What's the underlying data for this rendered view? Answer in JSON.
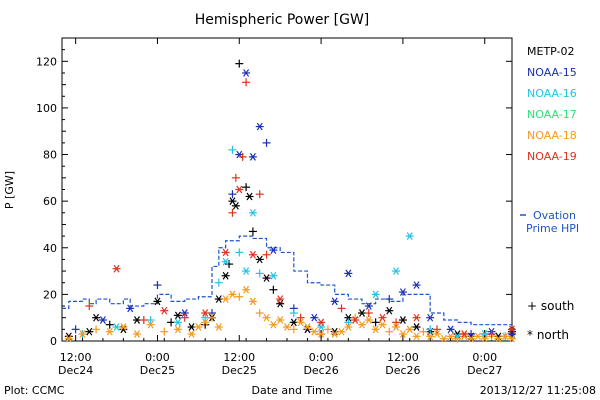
{
  "chart_data": {
    "type": "scatter",
    "title": "Hemispheric Power [GW]",
    "ylabel": "P [GW]",
    "xlabel": "Date and Time",
    "footer_left": "Plot: CCMC",
    "footer_right": "2013/12/27 11:25:08",
    "ylim": [
      0,
      130
    ],
    "yticks": [
      0,
      20,
      40,
      60,
      80,
      100,
      120
    ],
    "xlim_hours": [
      -14,
      52
    ],
    "xticks": [
      {
        "h": -12,
        "time": "12:00",
        "date": "Dec24"
      },
      {
        "h": 0,
        "time": "0:00",
        "date": "Dec25"
      },
      {
        "h": 12,
        "time": "12:00",
        "date": "Dec25"
      },
      {
        "h": 24,
        "time": "0:00",
        "date": "Dec26"
      },
      {
        "h": 36,
        "time": "12:00",
        "date": "Dec26"
      },
      {
        "h": 48,
        "time": "0:00",
        "date": "Dec27"
      }
    ],
    "legend": [
      {
        "name": "METP-02",
        "color": "#000000"
      },
      {
        "name": "NOAA-15",
        "color": "#1a2fb8"
      },
      {
        "name": "NOAA-16",
        "color": "#22c3e6"
      },
      {
        "name": "NOAA-17",
        "color": "#2ee07a"
      },
      {
        "name": "NOAA-18",
        "color": "#f59a1c"
      },
      {
        "name": "NOAA-19",
        "color": "#e0321e"
      }
    ],
    "ovation_label": [
      "Ovation",
      "Prime HPI"
    ],
    "ovation_color": "#1a56c8",
    "marker_legend": [
      {
        "symbol": "+",
        "label": "south"
      },
      {
        "symbol": "*",
        "label": "north"
      }
    ],
    "ovation_series": [
      [
        -14,
        14
      ],
      [
        -13,
        17
      ],
      [
        -11,
        18
      ],
      [
        -10,
        16
      ],
      [
        -9,
        18
      ],
      [
        -7,
        16
      ],
      [
        -5,
        18
      ],
      [
        -4,
        15
      ],
      [
        -2,
        16
      ],
      [
        0,
        20
      ],
      [
        2,
        17
      ],
      [
        4,
        18
      ],
      [
        6,
        19
      ],
      [
        8,
        32
      ],
      [
        9,
        40
      ],
      [
        10,
        43
      ],
      [
        12,
        45
      ],
      [
        14,
        44
      ],
      [
        16,
        40
      ],
      [
        18,
        38
      ],
      [
        20,
        30
      ],
      [
        22,
        25
      ],
      [
        24,
        24
      ],
      [
        26,
        20
      ],
      [
        28,
        18
      ],
      [
        30,
        16
      ],
      [
        32,
        18
      ],
      [
        34,
        17
      ],
      [
        36,
        20
      ],
      [
        38,
        20
      ],
      [
        40,
        12
      ],
      [
        42,
        9
      ],
      [
        44,
        8
      ],
      [
        46,
        7
      ],
      [
        48,
        7
      ],
      [
        50,
        7
      ],
      [
        52,
        7
      ]
    ],
    "series": [
      {
        "name": "METP-02",
        "points": [
          [
            -13,
            2,
            "n"
          ],
          [
            -10,
            4,
            "n"
          ],
          [
            -9,
            10,
            "n"
          ],
          [
            -7,
            7,
            "s"
          ],
          [
            -5,
            5,
            "n"
          ],
          [
            -3,
            9,
            "n"
          ],
          [
            0,
            17,
            "n"
          ],
          [
            2,
            8,
            "s"
          ],
          [
            3,
            11,
            "n"
          ],
          [
            5,
            6,
            "n"
          ],
          [
            7,
            7,
            "s"
          ],
          [
            8,
            10,
            "n"
          ],
          [
            9,
            18,
            "n"
          ],
          [
            10,
            28,
            "n"
          ],
          [
            10.5,
            33,
            "s"
          ],
          [
            11,
            60,
            "n"
          ],
          [
            11.5,
            58,
            "n"
          ],
          [
            12,
            119,
            "s"
          ],
          [
            13,
            66,
            "s"
          ],
          [
            13.5,
            62,
            "n"
          ],
          [
            14,
            47,
            "s"
          ],
          [
            15,
            35,
            "n"
          ],
          [
            16,
            27,
            "n"
          ],
          [
            17,
            22,
            "s"
          ],
          [
            18,
            16,
            "n"
          ],
          [
            20,
            8,
            "n"
          ],
          [
            22,
            5,
            "n"
          ],
          [
            24,
            3,
            "s"
          ],
          [
            26,
            4,
            "n"
          ],
          [
            28,
            10,
            "n"
          ],
          [
            30,
            12,
            "n"
          ],
          [
            32,
            8,
            "s"
          ],
          [
            34,
            13,
            "n"
          ],
          [
            36,
            9,
            "n"
          ],
          [
            38,
            6,
            "n"
          ],
          [
            40,
            4,
            "n"
          ],
          [
            44,
            3,
            "n"
          ],
          [
            46,
            2,
            "n"
          ],
          [
            48,
            3,
            "s"
          ],
          [
            50,
            2,
            "n"
          ],
          [
            52,
            4,
            "n"
          ]
        ]
      },
      {
        "name": "NOAA-15",
        "points": [
          [
            -12,
            5,
            "s"
          ],
          [
            -8,
            9,
            "n"
          ],
          [
            -4,
            14,
            "n"
          ],
          [
            0,
            24,
            "s"
          ],
          [
            4,
            12,
            "n"
          ],
          [
            8,
            12,
            "s"
          ],
          [
            11,
            63,
            "s"
          ],
          [
            12,
            80,
            "n"
          ],
          [
            13,
            115,
            "n"
          ],
          [
            14,
            79,
            "n"
          ],
          [
            15,
            92,
            "n"
          ],
          [
            16,
            85,
            "s"
          ],
          [
            17,
            39,
            "n"
          ],
          [
            20,
            14,
            "s"
          ],
          [
            23,
            10,
            "n"
          ],
          [
            26,
            17,
            "n"
          ],
          [
            28,
            29,
            "n"
          ],
          [
            31,
            15,
            "n"
          ],
          [
            34,
            18,
            "s"
          ],
          [
            36,
            21,
            "n"
          ],
          [
            38,
            24,
            "n"
          ],
          [
            40,
            10,
            "n"
          ],
          [
            43,
            5,
            "n"
          ],
          [
            46,
            3,
            "s"
          ],
          [
            49,
            4,
            "n"
          ],
          [
            52,
            3,
            "n"
          ]
        ]
      },
      {
        "name": "NOAA-16",
        "points": [
          [
            -11,
            3,
            "s"
          ],
          [
            -6,
            6,
            "n"
          ],
          [
            -1,
            9,
            "s"
          ],
          [
            3,
            8,
            "n"
          ],
          [
            7,
            10,
            "s"
          ],
          [
            9,
            25,
            "s"
          ],
          [
            10,
            34,
            "n"
          ],
          [
            11,
            82,
            "s"
          ],
          [
            12,
            38,
            "s"
          ],
          [
            13,
            30,
            "n"
          ],
          [
            14,
            55,
            "n"
          ],
          [
            15,
            29,
            "s"
          ],
          [
            17,
            28,
            "n"
          ],
          [
            20,
            12,
            "s"
          ],
          [
            24,
            6,
            "n"
          ],
          [
            28,
            8,
            "s"
          ],
          [
            32,
            20,
            "n"
          ],
          [
            35,
            30,
            "n"
          ],
          [
            37,
            45,
            "n"
          ],
          [
            40,
            5,
            "s"
          ],
          [
            44,
            2,
            "n"
          ],
          [
            48,
            3,
            "n"
          ],
          [
            51,
            2,
            "s"
          ]
        ]
      },
      {
        "name": "NOAA-18",
        "points": [
          [
            -13,
            1,
            "n"
          ],
          [
            -11,
            3,
            "n"
          ],
          [
            -9,
            5,
            "s"
          ],
          [
            -7,
            4,
            "n"
          ],
          [
            -5,
            6,
            "n"
          ],
          [
            -3,
            3,
            "n"
          ],
          [
            -1,
            7,
            "n"
          ],
          [
            1,
            4,
            "s"
          ],
          [
            3,
            5,
            "n"
          ],
          [
            5,
            3,
            "n"
          ],
          [
            6,
            6,
            "n"
          ],
          [
            7,
            8,
            "n"
          ],
          [
            8,
            10,
            "s"
          ],
          [
            9,
            6,
            "n"
          ],
          [
            10,
            18,
            "n"
          ],
          [
            11,
            20,
            "n"
          ],
          [
            12,
            19,
            "s"
          ],
          [
            13,
            22,
            "n"
          ],
          [
            14,
            17,
            "n"
          ],
          [
            15,
            12,
            "s"
          ],
          [
            16,
            10,
            "n"
          ],
          [
            17,
            7,
            "n"
          ],
          [
            18,
            9,
            "n"
          ],
          [
            19,
            6,
            "n"
          ],
          [
            20,
            5,
            "s"
          ],
          [
            21,
            8,
            "n"
          ],
          [
            22,
            6,
            "n"
          ],
          [
            23,
            4,
            "n"
          ],
          [
            24,
            3,
            "n"
          ],
          [
            25,
            5,
            "s"
          ],
          [
            26,
            3,
            "n"
          ],
          [
            27,
            4,
            "n"
          ],
          [
            28,
            6,
            "n"
          ],
          [
            29,
            10,
            "s"
          ],
          [
            30,
            7,
            "n"
          ],
          [
            31,
            9,
            "n"
          ],
          [
            32,
            5,
            "n"
          ],
          [
            33,
            7,
            "n"
          ],
          [
            34,
            4,
            "s"
          ],
          [
            35,
            6,
            "n"
          ],
          [
            36,
            3,
            "n"
          ],
          [
            37,
            5,
            "n"
          ],
          [
            38,
            2,
            "n"
          ],
          [
            39,
            4,
            "s"
          ],
          [
            40,
            2,
            "n"
          ],
          [
            41,
            3,
            "n"
          ],
          [
            42,
            1,
            "n"
          ],
          [
            43,
            2,
            "n"
          ],
          [
            44,
            1,
            "s"
          ],
          [
            45,
            2,
            "n"
          ],
          [
            46,
            1,
            "n"
          ],
          [
            47,
            2,
            "n"
          ],
          [
            48,
            1,
            "n"
          ],
          [
            49,
            2,
            "s"
          ],
          [
            50,
            1,
            "n"
          ],
          [
            51,
            2,
            "n"
          ],
          [
            52,
            1,
            "n"
          ]
        ]
      },
      {
        "name": "NOAA-19",
        "points": [
          [
            -10,
            15,
            "s"
          ],
          [
            -6,
            31,
            "n"
          ],
          [
            -2,
            9,
            "s"
          ],
          [
            1,
            13,
            "n"
          ],
          [
            4,
            10,
            "s"
          ],
          [
            7,
            12,
            "n"
          ],
          [
            10,
            38,
            "n"
          ],
          [
            11,
            55,
            "s"
          ],
          [
            11.5,
            70,
            "s"
          ],
          [
            12,
            65,
            "n"
          ],
          [
            12.5,
            79,
            "s"
          ],
          [
            13,
            111,
            "s"
          ],
          [
            14,
            37,
            "n"
          ],
          [
            15,
            63,
            "s"
          ],
          [
            16,
            37,
            "s"
          ],
          [
            18,
            18,
            "n"
          ],
          [
            21,
            10,
            "s"
          ],
          [
            24,
            8,
            "n"
          ],
          [
            27,
            14,
            "s"
          ],
          [
            29,
            9,
            "n"
          ],
          [
            31,
            12,
            "s"
          ],
          [
            33,
            10,
            "n"
          ],
          [
            35,
            8,
            "s"
          ],
          [
            38,
            10,
            "n"
          ],
          [
            41,
            5,
            "s"
          ],
          [
            45,
            3,
            "n"
          ],
          [
            49,
            3,
            "s"
          ],
          [
            52,
            5,
            "n"
          ]
        ]
      }
    ]
  }
}
